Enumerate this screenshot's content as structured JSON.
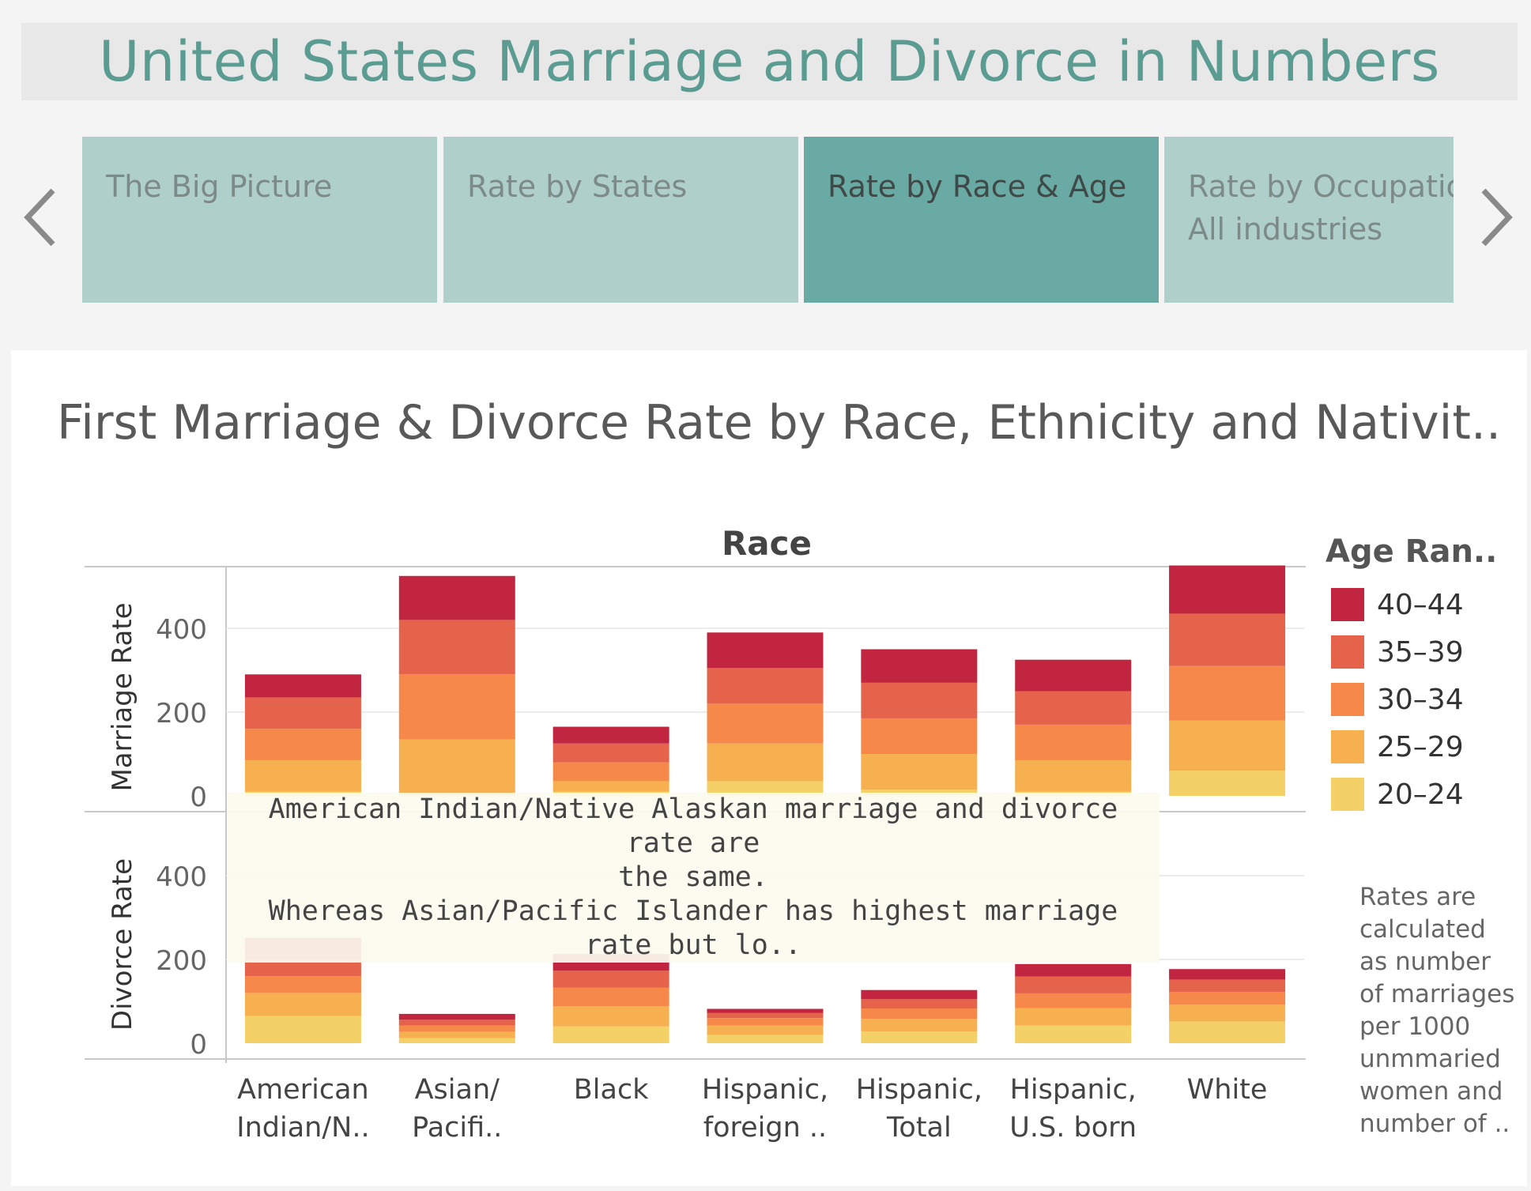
{
  "dashboard_title": "United States Marriage and Divorce in Numbers",
  "story_points": [
    {
      "label": "The Big Picture",
      "sub": "",
      "active": false
    },
    {
      "label": "Rate by States",
      "sub": "",
      "active": false
    },
    {
      "label": "Rate by Race & Age",
      "sub": "",
      "active": true
    },
    {
      "label": "Rate by Occupation",
      "sub": "All industries",
      "active": false
    }
  ],
  "colors": {
    "title": "#5a9c92",
    "story_inactive": "#afcfcb",
    "story_active": "#6aaaa4"
  },
  "legend": {
    "title": "Age Ran..",
    "items": [
      {
        "label": "40–44",
        "color": "#c1253f"
      },
      {
        "label": "35–39",
        "color": "#e5634a"
      },
      {
        "label": "30–34",
        "color": "#f6894a"
      },
      {
        "label": "25–29",
        "color": "#f7b050"
      },
      {
        "label": "20–24",
        "color": "#f4d166"
      }
    ]
  },
  "note": "Rates are calculated as number of marriages per 1000 unmmaried women and number of ..",
  "annotation": [
    "American Indian/Native Alaskan marriage and divorce rate are",
    "the same.",
    "Whereas Asian/Pacific Islander has highest marriage rate but lo.."
  ],
  "chart_data": {
    "type": "bar",
    "stacked": true,
    "title": "First Marriage & Divorce Rate by Race, Ethnicity and Nativit..",
    "column_header": "Race",
    "categories": [
      "American Indian/N..",
      "Asian/ Pacifi..",
      "Black",
      "Hispanic, foreign ..",
      "Hispanic, Total",
      "Hispanic, U.S. born",
      "White"
    ],
    "category_lines": [
      [
        "American",
        "Indian/N.."
      ],
      [
        "Asian/",
        "Pacifi.."
      ],
      [
        "Black"
      ],
      [
        "Hispanic,",
        "foreign .."
      ],
      [
        "Hispanic,",
        "Total"
      ],
      [
        "Hispanic,",
        "U.S. born"
      ],
      [
        "White"
      ]
    ],
    "panels": [
      {
        "ylabel": "Marriage Rate",
        "ylim": [
          0,
          550
        ],
        "yticks": [
          0,
          200,
          400
        ],
        "series": [
          {
            "name": "20–24",
            "values": [
              10,
              5,
              10,
              35,
              15,
              10,
              60
            ]
          },
          {
            "name": "25–29",
            "values": [
              75,
              130,
              25,
              90,
              85,
              75,
              120
            ]
          },
          {
            "name": "30–34",
            "values": [
              75,
              155,
              45,
              95,
              85,
              85,
              130
            ]
          },
          {
            "name": "35–39",
            "values": [
              75,
              130,
              45,
              85,
              85,
              80,
              125
            ]
          },
          {
            "name": "40–44",
            "values": [
              55,
              105,
              40,
              85,
              80,
              75,
              115
            ]
          }
        ]
      },
      {
        "ylabel": "Divorce Rate",
        "ylim": [
          0,
          550
        ],
        "yticks": [
          0,
          200,
          400
        ],
        "series": [
          {
            "name": "20–24",
            "values": [
              65,
              12,
              40,
              20,
              28,
              42,
              52
            ]
          },
          {
            "name": "25–29",
            "values": [
              55,
              15,
              48,
              22,
              30,
              42,
              40
            ]
          },
          {
            "name": "30–34",
            "values": [
              40,
              15,
              45,
              18,
              25,
              35,
              30
            ]
          },
          {
            "name": "35–39",
            "values": [
              40,
              14,
              40,
              12,
              22,
              40,
              30
            ]
          },
          {
            "name": "40–44",
            "values": [
              52,
              14,
              40,
              10,
              22,
              30,
              25
            ]
          }
        ]
      }
    ]
  }
}
